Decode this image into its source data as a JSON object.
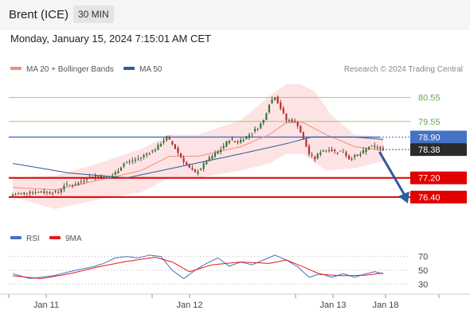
{
  "header": {
    "symbol": "Brent (ICE)",
    "timeframe": "30 MIN"
  },
  "timestamp": "Monday, January 15, 2024 7:15:01 AM CET",
  "credit": "Research © 2024 Trading Central",
  "legend": {
    "main": [
      {
        "label": "MA 20 + Bollinger Bands",
        "color": "#f28b82"
      },
      {
        "label": "MA 50",
        "color": "#2c5d9c"
      }
    ],
    "indicator": [
      {
        "label": "RSI",
        "color": "#4472c4"
      },
      {
        "label": "9MA",
        "color": "#e31a1c"
      }
    ]
  },
  "colors": {
    "up": "#2e7d32",
    "down": "#c62828",
    "wick": "#333333",
    "resistance": "#9ccc65",
    "support": "#e00000",
    "pivot": "#4472c4",
    "current_box": "#2b2b2b",
    "arrow": "#2c5d9c",
    "band_fill": "#fde3e3"
  },
  "chart_data": [
    {
      "type": "candlestick",
      "title": "Brent (ICE)",
      "timeframe": "30 MIN",
      "x_ticks": [
        "Jan 11",
        "Jan 12",
        "Jan 13",
        "Jan 18"
      ],
      "ylim": [
        75.5,
        81.3
      ],
      "levels": [
        {
          "label": "80.55",
          "value": 80.55,
          "kind": "resistance"
        },
        {
          "label": "79.55",
          "value": 79.55,
          "kind": "resistance"
        },
        {
          "label": "78.90",
          "value": 78.9,
          "kind": "pivot"
        },
        {
          "label": "77.20",
          "value": 77.2,
          "kind": "support"
        },
        {
          "label": "76.40",
          "value": 76.4,
          "kind": "support"
        }
      ],
      "current_price": {
        "label": "78.38",
        "value": 78.38
      },
      "projection": {
        "from": 78.38,
        "to": 76.4,
        "direction": "down"
      },
      "anchors": {
        "close": [
          [
            0,
            76.5
          ],
          [
            6,
            76.6
          ],
          [
            12,
            76.6
          ],
          [
            16,
            76.6
          ],
          [
            18,
            76.9
          ],
          [
            22,
            76.9
          ],
          [
            26,
            77.2
          ],
          [
            30,
            77.3
          ],
          [
            34,
            77.2
          ],
          [
            36,
            77.4
          ],
          [
            39,
            77.8
          ],
          [
            44,
            78.0
          ],
          [
            50,
            78.4
          ],
          [
            54,
            78.9
          ],
          [
            56,
            78.6
          ],
          [
            60,
            77.9
          ],
          [
            62,
            77.6
          ],
          [
            64,
            77.4
          ],
          [
            66,
            77.6
          ],
          [
            68,
            77.9
          ],
          [
            71,
            78.2
          ],
          [
            73,
            78.4
          ],
          [
            76,
            78.8
          ],
          [
            79,
            78.7
          ],
          [
            83,
            79.0
          ],
          [
            86,
            79.3
          ],
          [
            88,
            79.6
          ],
          [
            90,
            80.3
          ],
          [
            92,
            80.6
          ],
          [
            94,
            80.1
          ],
          [
            96,
            79.6
          ],
          [
            98,
            79.6
          ],
          [
            100,
            79.4
          ],
          [
            102,
            78.8
          ],
          [
            104,
            78.2
          ],
          [
            106,
            78.0
          ],
          [
            108,
            78.3
          ],
          [
            111,
            78.4
          ],
          [
            113,
            78.3
          ],
          [
            116,
            78.3
          ],
          [
            118,
            78.0
          ],
          [
            120,
            78.1
          ],
          [
            122,
            78.2
          ],
          [
            125,
            78.5
          ],
          [
            127,
            78.5
          ],
          [
            130,
            78.38
          ]
        ],
        "ma20": [
          [
            0,
            76.8
          ],
          [
            15,
            76.7
          ],
          [
            30,
            77.1
          ],
          [
            45,
            77.5
          ],
          [
            55,
            78.1
          ],
          [
            65,
            78.1
          ],
          [
            80,
            78.5
          ],
          [
            90,
            79.0
          ],
          [
            96,
            79.5
          ],
          [
            102,
            79.5
          ],
          [
            110,
            79.0
          ],
          [
            120,
            78.5
          ],
          [
            130,
            78.35
          ]
        ],
        "bb_upper": [
          [
            0,
            77.2
          ],
          [
            15,
            77.3
          ],
          [
            30,
            77.8
          ],
          [
            45,
            78.4
          ],
          [
            55,
            79.0
          ],
          [
            65,
            79.0
          ],
          [
            80,
            79.6
          ],
          [
            90,
            80.6
          ],
          [
            96,
            81.1
          ],
          [
            101,
            81.1
          ],
          [
            106,
            80.8
          ],
          [
            112,
            79.8
          ],
          [
            120,
            79.0
          ],
          [
            130,
            78.9
          ]
        ],
        "bb_lower": [
          [
            0,
            76.4
          ],
          [
            15,
            75.9
          ],
          [
            30,
            76.3
          ],
          [
            45,
            76.6
          ],
          [
            55,
            77.2
          ],
          [
            65,
            77.2
          ],
          [
            80,
            77.5
          ],
          [
            90,
            77.8
          ],
          [
            96,
            78.2
          ],
          [
            102,
            78.2
          ],
          [
            110,
            77.5
          ],
          [
            120,
            77.6
          ],
          [
            130,
            77.9
          ]
        ],
        "ma50": [
          [
            0,
            77.8
          ],
          [
            20,
            77.4
          ],
          [
            40,
            77.2
          ],
          [
            60,
            77.7
          ],
          [
            80,
            78.2
          ],
          [
            95,
            78.6
          ],
          [
            105,
            78.9
          ],
          [
            120,
            78.9
          ],
          [
            130,
            78.8
          ]
        ]
      }
    },
    {
      "type": "line",
      "title": "RSI",
      "ylim": [
        20,
        80
      ],
      "y_ticks": [
        70,
        50,
        30
      ],
      "series": [
        {
          "name": "RSI",
          "anchors": [
            [
              0,
              45
            ],
            [
              6,
              38
            ],
            [
              14,
              42
            ],
            [
              22,
              50
            ],
            [
              28,
              55
            ],
            [
              32,
              60
            ],
            [
              36,
              68
            ],
            [
              40,
              70
            ],
            [
              44,
              68
            ],
            [
              48,
              72
            ],
            [
              52,
              70
            ],
            [
              56,
              50
            ],
            [
              60,
              38
            ],
            [
              64,
              50
            ],
            [
              68,
              60
            ],
            [
              72,
              68
            ],
            [
              76,
              56
            ],
            [
              80,
              62
            ],
            [
              84,
              58
            ],
            [
              88,
              65
            ],
            [
              92,
              72
            ],
            [
              96,
              65
            ],
            [
              100,
              55
            ],
            [
              104,
              40
            ],
            [
              108,
              45
            ],
            [
              112,
              40
            ],
            [
              116,
              45
            ],
            [
              120,
              40
            ],
            [
              124,
              45
            ],
            [
              127,
              48
            ],
            [
              130,
              45
            ]
          ]
        },
        {
          "name": "9MA",
          "anchors": [
            [
              0,
              42
            ],
            [
              10,
              38
            ],
            [
              20,
              45
            ],
            [
              30,
              55
            ],
            [
              40,
              63
            ],
            [
              50,
              69
            ],
            [
              56,
              62
            ],
            [
              62,
              48
            ],
            [
              70,
              58
            ],
            [
              80,
              62
            ],
            [
              90,
              60
            ],
            [
              96,
              65
            ],
            [
              102,
              55
            ],
            [
              108,
              44
            ],
            [
              116,
              42
            ],
            [
              124,
              43
            ],
            [
              130,
              46
            ]
          ]
        }
      ]
    }
  ]
}
